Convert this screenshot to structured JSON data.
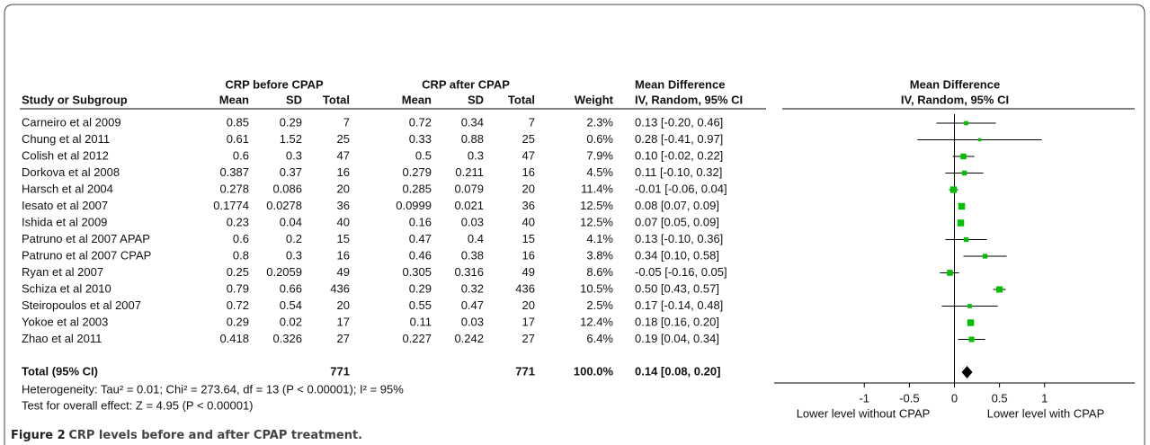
{
  "table": {
    "group_headers": [
      "CRP before CPAP",
      "CRP after CPAP"
    ],
    "header": [
      "Study or Subgroup",
      "Mean",
      "SD",
      "Total",
      "Mean",
      "SD",
      "Total",
      "Weight",
      "Mean Difference",
      "IV, Random, 95% CI"
    ],
    "rows": [
      [
        "Carneiro et al 2009",
        "0.85",
        "0.29",
        "7",
        "0.72",
        "0.34",
        "7",
        "2.3%"
      ],
      [
        "Chung et al 2011",
        "0.61",
        "1.52",
        "25",
        "0.33",
        "0.88",
        "25",
        "0.6%"
      ],
      [
        "Colish et al 2012",
        "0.6",
        "0.3",
        "47",
        "0.5",
        "0.3",
        "47",
        "7.9%"
      ],
      [
        "Dorkova et al 2008",
        "0.387",
        "0.37",
        "16",
        "0.279",
        "0.211",
        "16",
        "4.5%"
      ],
      [
        "Harsch et al 2004",
        "0.278",
        "0.086",
        "20",
        "0.285",
        "0.079",
        "20",
        "11.4%"
      ],
      [
        "Iesato et al 2007",
        "0.1774",
        "0.0278",
        "36",
        "0.0999",
        "0.021",
        "36",
        "12.5%"
      ],
      [
        "Ishida et al 2009",
        "0.23",
        "0.04",
        "40",
        "0.16",
        "0.03",
        "40",
        "12.5%"
      ],
      [
        "Patruno et al 2007 APAP",
        "0.6",
        "0.2",
        "15",
        "0.47",
        "0.4",
        "15",
        "4.1%"
      ],
      [
        "Patruno et al 2007 CPAP",
        "0.8",
        "0.3",
        "16",
        "0.46",
        "0.38",
        "16",
        "3.8%"
      ],
      [
        "Ryan et al 2007",
        "0.25",
        "0.2059",
        "49",
        "0.305",
        "0.316",
        "49",
        "8.6%"
      ],
      [
        "Schiza et al 2010",
        "0.79",
        "0.66",
        "436",
        "0.29",
        "0.32",
        "436",
        "10.5%"
      ],
      [
        "Steiropoulos et al 2007",
        "0.72",
        "0.54",
        "20",
        "0.55",
        "0.47",
        "20",
        "2.5%"
      ],
      [
        "Yokoe et al 2003",
        "0.29",
        "0.02",
        "17",
        "0.11",
        "0.03",
        "17",
        "12.4%"
      ],
      [
        "Zhao et al 2011",
        "0.418",
        "0.326",
        "27",
        "0.227",
        "0.242",
        "27",
        "6.4%"
      ]
    ],
    "total": [
      "Total (95% CI)",
      "771",
      "771",
      "100.0%"
    ],
    "heterogeneity": "Heterogeneity: Tau² = 0.01; Chi² = 273.64, df = 13 (P < 0.00001); I² = 95%",
    "overall_effect": "Test for overall effect: Z = 4.95 (P < 0.00001)"
  },
  "chart_data": {
    "type": "forest",
    "title": "Mean Difference",
    "subtitle": "IV, Random, 95% CI",
    "values": [
      0.13,
      0.28,
      0.1,
      0.11,
      -0.01,
      0.08,
      0.07,
      0.13,
      0.34,
      -0.05,
      0.5,
      0.17,
      0.18,
      0.19
    ],
    "lower": [
      -0.2,
      -0.41,
      -0.02,
      -0.1,
      -0.06,
      0.07,
      0.05,
      -0.1,
      0.1,
      -0.16,
      0.43,
      -0.14,
      0.16,
      0.04
    ],
    "upper": [
      0.46,
      0.97,
      0.22,
      0.32,
      0.04,
      0.09,
      0.09,
      0.36,
      0.58,
      0.05,
      0.57,
      0.48,
      0.2,
      0.34
    ],
    "weights": [
      2.3,
      0.6,
      7.9,
      4.5,
      11.4,
      12.5,
      12.5,
      4.1,
      3.8,
      8.6,
      10.5,
      2.5,
      12.4,
      6.4
    ],
    "value_labels": [
      "0.13 [-0.20, 0.46]",
      "0.28 [-0.41, 0.97]",
      "0.10 [-0.02, 0.22]",
      "0.11 [-0.10, 0.32]",
      "-0.01 [-0.06, 0.04]",
      "0.08 [0.07, 0.09]",
      "0.07 [0.05, 0.09]",
      "0.13 [-0.10, 0.36]",
      "0.34 [0.10, 0.58]",
      "-0.05 [-0.16, 0.05]",
      "0.50 [0.43, 0.57]",
      "0.17 [-0.14, 0.48]",
      "0.18 [0.16, 0.20]",
      "0.19 [0.04, 0.34]"
    ],
    "total": {
      "value": 0.14,
      "lower": 0.08,
      "upper": 0.2,
      "value_label": "0.14 [0.08, 0.20]"
    },
    "color": "#00c000",
    "total_color": "#000000",
    "xlim": [
      -2,
      2
    ],
    "xticks": [
      -1,
      -0.5,
      0,
      0.5,
      1
    ],
    "x_left_label": "Lower level without CPAP",
    "x_right_label": "Lower level with CPAP"
  },
  "caption": {
    "label": "Figure 2",
    "text": "CRP levels before and after CPAP treatment."
  }
}
